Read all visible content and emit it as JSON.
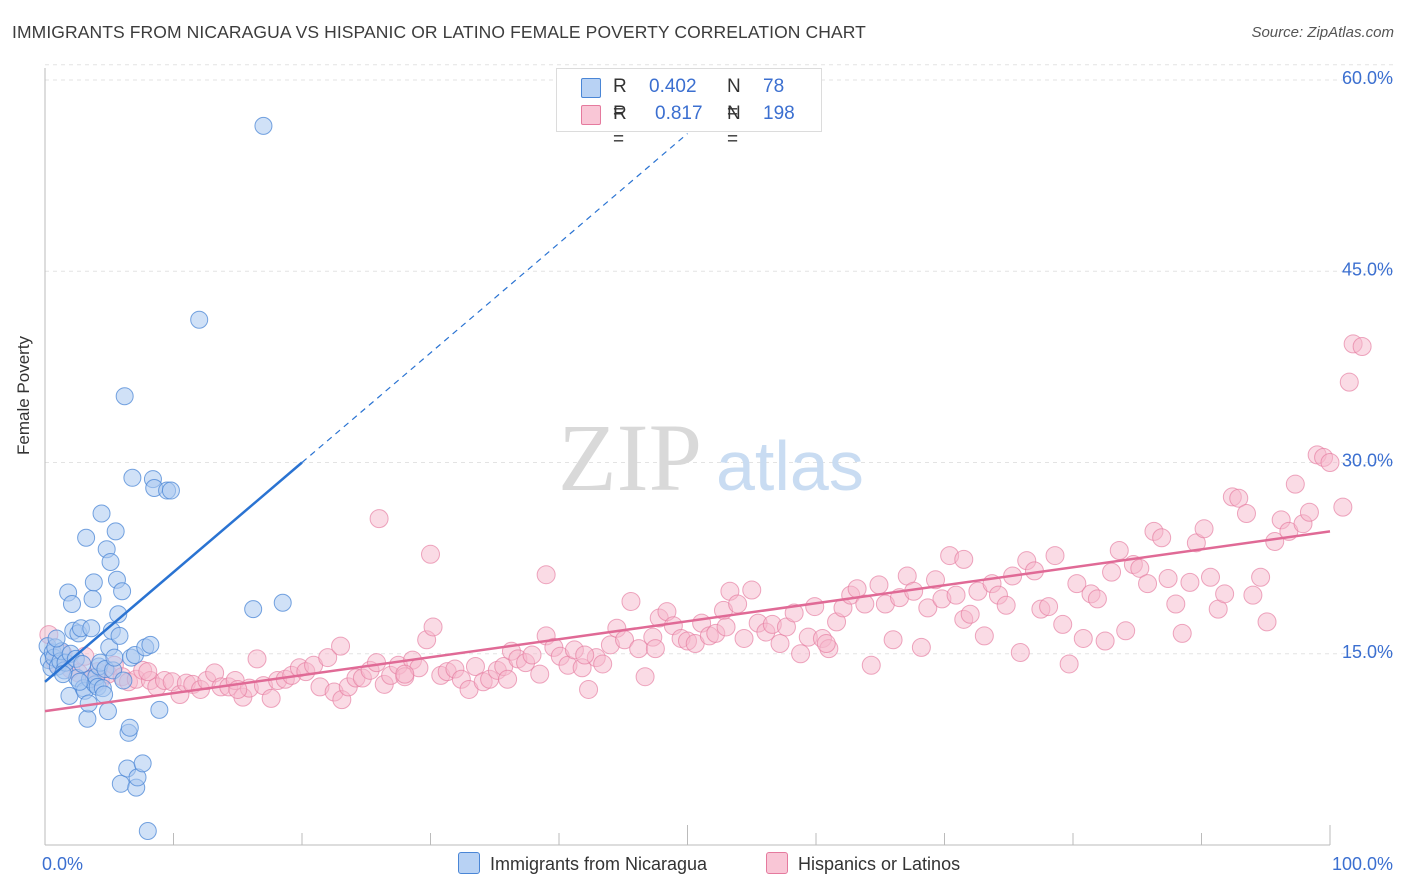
{
  "title": "IMMIGRANTS FROM NICARAGUA VS HISPANIC OR LATINO FEMALE POVERTY CORRELATION CHART",
  "source": "Source: ZipAtlas.com",
  "watermark": {
    "zip": "ZIP",
    "atlas": "atlas"
  },
  "stats": {
    "series1": {
      "r_label": "R =",
      "r_value": "0.402",
      "n_label": "N =",
      "n_value": "78"
    },
    "series2": {
      "r_label": "R =",
      "r_value": "0.817",
      "n_label": "N =",
      "n_value": "198"
    }
  },
  "legend": {
    "series1": "Immigrants from Nicaragua",
    "series2": "Hispanics or Latinos"
  },
  "colors": {
    "blue_fill": "#a9c8f0",
    "blue_stroke": "#4a86d6",
    "blue_line": "#2a73d2",
    "pink_fill": "#f6b8cc",
    "pink_stroke": "#e57a9e",
    "pink_line": "#e06a96",
    "tick_label": "#3b6fd0",
    "grid": "#e3e3e3"
  },
  "chart_data": {
    "type": "scatter",
    "title": "IMMIGRANTS FROM NICARAGUA VS HISPANIC OR LATINO FEMALE POVERTY CORRELATION CHART",
    "xlabel": "",
    "ylabel": "Female Poverty",
    "xlim": [
      0,
      100
    ],
    "ylim": [
      0,
      62
    ],
    "x_tick_labels": [
      "0.0%",
      "100.0%"
    ],
    "y_ticks": [
      15,
      30,
      45,
      60
    ],
    "y_tick_labels": [
      "15.0%",
      "30.0%",
      "45.0%",
      "60.0%"
    ],
    "grid": "horizontal dashed",
    "legend_position": "bottom",
    "series": [
      {
        "name": "Immigrants from Nicaragua",
        "color": "#a9c8f0",
        "trend": {
          "x": [
            0,
            20
          ],
          "y": [
            12.8,
            30.0
          ],
          "dashed_to": [
            50,
            55.8
          ]
        },
        "points": [
          [
            0.2,
            15.6
          ],
          [
            0.3,
            14.5
          ],
          [
            0.5,
            13.9
          ],
          [
            0.6,
            15.1
          ],
          [
            0.7,
            14.7
          ],
          [
            0.8,
            15.5
          ],
          [
            1.0,
            14.0
          ],
          [
            1.2,
            14.4
          ],
          [
            1.3,
            15.2
          ],
          [
            1.5,
            13.7
          ],
          [
            1.6,
            14.3
          ],
          [
            1.8,
            19.8
          ],
          [
            1.9,
            11.7
          ],
          [
            2.0,
            15.0
          ],
          [
            2.1,
            18.9
          ],
          [
            2.2,
            16.8
          ],
          [
            2.4,
            14.6
          ],
          [
            2.5,
            13.1
          ],
          [
            2.6,
            16.6
          ],
          [
            2.8,
            17.0
          ],
          [
            2.9,
            14.2
          ],
          [
            3.0,
            12.3
          ],
          [
            3.1,
            12.1
          ],
          [
            3.2,
            24.1
          ],
          [
            3.3,
            9.9
          ],
          [
            3.4,
            11.1
          ],
          [
            3.5,
            13.0
          ],
          [
            3.6,
            17.0
          ],
          [
            3.7,
            19.3
          ],
          [
            3.8,
            20.6
          ],
          [
            3.9,
            12.6
          ],
          [
            4.0,
            13.2
          ],
          [
            4.1,
            12.4
          ],
          [
            4.2,
            14.0
          ],
          [
            4.3,
            14.3
          ],
          [
            4.4,
            26.0
          ],
          [
            4.5,
            12.3
          ],
          [
            4.6,
            11.8
          ],
          [
            4.7,
            13.8
          ],
          [
            4.8,
            23.2
          ],
          [
            4.9,
            10.5
          ],
          [
            5.0,
            15.5
          ],
          [
            5.1,
            22.2
          ],
          [
            5.2,
            16.8
          ],
          [
            5.3,
            13.7
          ],
          [
            5.4,
            14.7
          ],
          [
            5.5,
            24.6
          ],
          [
            5.6,
            20.8
          ],
          [
            5.7,
            18.1
          ],
          [
            5.8,
            16.4
          ],
          [
            5.9,
            4.8
          ],
          [
            6.0,
            19.9
          ],
          [
            6.1,
            12.9
          ],
          [
            6.2,
            35.2
          ],
          [
            6.4,
            6.0
          ],
          [
            6.5,
            8.8
          ],
          [
            6.6,
            9.2
          ],
          [
            6.7,
            14.7
          ],
          [
            6.8,
            28.8
          ],
          [
            7.0,
            14.9
          ],
          [
            7.1,
            4.5
          ],
          [
            7.2,
            5.3
          ],
          [
            7.6,
            6.4
          ],
          [
            7.8,
            15.5
          ],
          [
            8.0,
            1.1
          ],
          [
            8.2,
            15.7
          ],
          [
            8.4,
            28.7
          ],
          [
            8.5,
            28.0
          ],
          [
            8.9,
            10.6
          ],
          [
            9.5,
            27.8
          ],
          [
            9.8,
            27.8
          ],
          [
            12.0,
            41.2
          ],
          [
            16.2,
            18.5
          ],
          [
            17.0,
            56.4
          ],
          [
            18.5,
            19.0
          ],
          [
            2.7,
            12.8
          ],
          [
            1.4,
            13.4
          ],
          [
            0.9,
            16.2
          ]
        ]
      },
      {
        "name": "Hispanics or Latinos",
        "color": "#f6b8cc",
        "trend": {
          "x": [
            0,
            100
          ],
          "y": [
            10.5,
            24.6
          ]
        },
        "points": [
          [
            0.3,
            16.5
          ],
          [
            0.8,
            14.3
          ],
          [
            1.4,
            15.0
          ],
          [
            2.0,
            13.8
          ],
          [
            2.6,
            13.5
          ],
          [
            3.1,
            14.8
          ],
          [
            3.7,
            13.1
          ],
          [
            4.3,
            12.9
          ],
          [
            4.9,
            13.4
          ],
          [
            5.4,
            14.1
          ],
          [
            6.0,
            13.2
          ],
          [
            6.5,
            12.8
          ],
          [
            7.1,
            13.0
          ],
          [
            7.6,
            13.7
          ],
          [
            8.2,
            12.9
          ],
          [
            8.7,
            12.4
          ],
          [
            9.3,
            12.9
          ],
          [
            9.9,
            12.8
          ],
          [
            10.5,
            11.8
          ],
          [
            11.0,
            12.7
          ],
          [
            11.5,
            12.6
          ],
          [
            12.1,
            12.2
          ],
          [
            12.6,
            12.9
          ],
          [
            13.2,
            13.5
          ],
          [
            13.7,
            12.4
          ],
          [
            14.3,
            12.4
          ],
          [
            14.8,
            12.9
          ],
          [
            15.4,
            11.6
          ],
          [
            15.9,
            12.3
          ],
          [
            16.5,
            14.6
          ],
          [
            17.0,
            12.5
          ],
          [
            17.6,
            11.5
          ],
          [
            18.1,
            12.9
          ],
          [
            18.7,
            13.0
          ],
          [
            19.2,
            13.3
          ],
          [
            19.8,
            13.9
          ],
          [
            20.3,
            13.6
          ],
          [
            20.9,
            14.1
          ],
          [
            21.4,
            12.4
          ],
          [
            22.0,
            14.7
          ],
          [
            22.5,
            12.0
          ],
          [
            23.1,
            11.4
          ],
          [
            23.6,
            12.4
          ],
          [
            24.2,
            13.1
          ],
          [
            24.7,
            13.1
          ],
          [
            25.3,
            13.7
          ],
          [
            25.8,
            14.3
          ],
          [
            26.4,
            12.6
          ],
          [
            26.9,
            13.3
          ],
          [
            27.5,
            14.1
          ],
          [
            28.0,
            13.2
          ],
          [
            28.6,
            14.5
          ],
          [
            29.1,
            13.9
          ],
          [
            29.7,
            16.1
          ],
          [
            30.2,
            17.1
          ],
          [
            30.8,
            13.3
          ],
          [
            31.3,
            13.6
          ],
          [
            31.9,
            13.8
          ],
          [
            32.4,
            13.0
          ],
          [
            33.0,
            12.2
          ],
          [
            33.5,
            14.0
          ],
          [
            34.1,
            12.8
          ],
          [
            34.6,
            13.0
          ],
          [
            35.2,
            13.7
          ],
          [
            35.7,
            14.0
          ],
          [
            36.3,
            15.2
          ],
          [
            36.8,
            14.6
          ],
          [
            37.4,
            14.3
          ],
          [
            37.9,
            14.9
          ],
          [
            38.5,
            13.4
          ],
          [
            39.0,
            16.4
          ],
          [
            39.6,
            15.5
          ],
          [
            40.1,
            14.8
          ],
          [
            40.7,
            14.1
          ],
          [
            41.2,
            15.3
          ],
          [
            41.8,
            13.9
          ],
          [
            42.3,
            12.2
          ],
          [
            42.9,
            14.7
          ],
          [
            43.4,
            14.2
          ],
          [
            44.0,
            15.7
          ],
          [
            44.5,
            17.0
          ],
          [
            45.1,
            16.1
          ],
          [
            45.6,
            19.1
          ],
          [
            46.2,
            15.4
          ],
          [
            46.7,
            13.2
          ],
          [
            47.3,
            16.3
          ],
          [
            47.8,
            17.8
          ],
          [
            48.4,
            18.3
          ],
          [
            48.9,
            17.2
          ],
          [
            49.5,
            16.2
          ],
          [
            50.0,
            16.0
          ],
          [
            50.6,
            15.8
          ],
          [
            51.1,
            17.4
          ],
          [
            51.7,
            16.4
          ],
          [
            52.2,
            16.6
          ],
          [
            52.8,
            18.4
          ],
          [
            53.3,
            19.9
          ],
          [
            53.9,
            18.9
          ],
          [
            54.4,
            16.2
          ],
          [
            55.0,
            20.0
          ],
          [
            55.5,
            17.4
          ],
          [
            56.1,
            16.7
          ],
          [
            56.6,
            17.3
          ],
          [
            57.2,
            15.8
          ],
          [
            57.7,
            17.1
          ],
          [
            58.3,
            18.2
          ],
          [
            58.8,
            15.0
          ],
          [
            59.4,
            16.3
          ],
          [
            59.9,
            18.7
          ],
          [
            60.5,
            16.2
          ],
          [
            61.0,
            15.4
          ],
          [
            61.6,
            17.5
          ],
          [
            62.1,
            18.6
          ],
          [
            62.7,
            19.6
          ],
          [
            63.2,
            20.1
          ],
          [
            63.8,
            18.9
          ],
          [
            64.3,
            14.1
          ],
          [
            64.9,
            20.4
          ],
          [
            65.4,
            18.9
          ],
          [
            66.0,
            16.1
          ],
          [
            66.5,
            19.4
          ],
          [
            67.1,
            21.1
          ],
          [
            67.6,
            19.9
          ],
          [
            68.2,
            15.5
          ],
          [
            68.7,
            18.6
          ],
          [
            69.3,
            20.8
          ],
          [
            69.8,
            19.3
          ],
          [
            70.4,
            22.7
          ],
          [
            70.9,
            19.6
          ],
          [
            71.5,
            17.7
          ],
          [
            72.0,
            18.1
          ],
          [
            72.6,
            19.9
          ],
          [
            73.1,
            16.4
          ],
          [
            73.7,
            20.5
          ],
          [
            74.2,
            19.6
          ],
          [
            74.8,
            18.8
          ],
          [
            75.3,
            21.1
          ],
          [
            75.9,
            15.1
          ],
          [
            76.4,
            22.3
          ],
          [
            77.0,
            21.5
          ],
          [
            77.5,
            18.5
          ],
          [
            78.1,
            18.7
          ],
          [
            78.6,
            22.7
          ],
          [
            79.2,
            17.3
          ],
          [
            79.7,
            14.2
          ],
          [
            80.3,
            20.5
          ],
          [
            80.8,
            16.2
          ],
          [
            81.4,
            19.7
          ],
          [
            81.9,
            19.3
          ],
          [
            82.5,
            16.0
          ],
          [
            83.0,
            21.4
          ],
          [
            83.6,
            23.1
          ],
          [
            84.1,
            16.8
          ],
          [
            84.7,
            22.0
          ],
          [
            85.2,
            21.7
          ],
          [
            85.8,
            20.5
          ],
          [
            86.3,
            24.6
          ],
          [
            86.9,
            24.1
          ],
          [
            87.4,
            20.9
          ],
          [
            88.0,
            18.9
          ],
          [
            88.5,
            16.6
          ],
          [
            89.1,
            20.6
          ],
          [
            89.6,
            23.7
          ],
          [
            90.2,
            24.8
          ],
          [
            90.7,
            21.0
          ],
          [
            91.3,
            18.5
          ],
          [
            91.8,
            19.7
          ],
          [
            92.4,
            27.3
          ],
          [
            92.9,
            27.2
          ],
          [
            93.5,
            26.0
          ],
          [
            94.0,
            19.6
          ],
          [
            94.6,
            21.0
          ],
          [
            95.1,
            17.5
          ],
          [
            95.7,
            23.8
          ],
          [
            96.2,
            25.5
          ],
          [
            96.8,
            24.6
          ],
          [
            97.3,
            28.3
          ],
          [
            97.9,
            25.2
          ],
          [
            98.4,
            26.1
          ],
          [
            99.0,
            30.6
          ],
          [
            99.5,
            30.4
          ],
          [
            100.0,
            30.0
          ],
          [
            101.0,
            26.5
          ],
          [
            101.5,
            36.3
          ],
          [
            101.8,
            39.3
          ],
          [
            102.5,
            39.1
          ],
          [
            26.0,
            25.6
          ],
          [
            30.0,
            22.8
          ],
          [
            39.0,
            21.2
          ],
          [
            71.5,
            22.4
          ],
          [
            4.1,
            13.6
          ],
          [
            8.0,
            13.6
          ],
          [
            15.0,
            12.2
          ],
          [
            23.0,
            15.6
          ],
          [
            28.0,
            13.4
          ],
          [
            36.0,
            13.0
          ],
          [
            42.0,
            14.9
          ],
          [
            47.5,
            15.4
          ],
          [
            53.0,
            17.1
          ],
          [
            60.8,
            15.8
          ]
        ]
      }
    ]
  }
}
